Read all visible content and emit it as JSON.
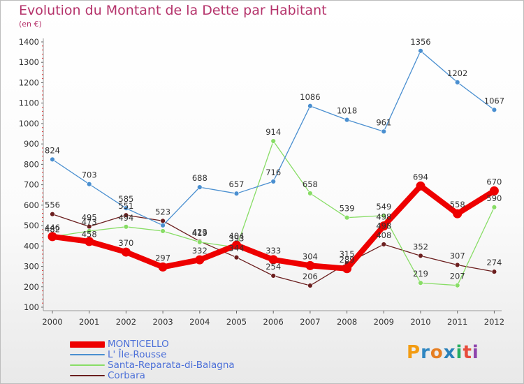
{
  "title": "Evolution du Montant de la Dette par Habitant",
  "subtitle": "(en €)",
  "logo": {
    "letters": [
      "P",
      "r",
      "o",
      "x",
      "i",
      "t",
      "i"
    ],
    "colors": [
      "#f39c12",
      "#2e86c1",
      "#e67e22",
      "#2980b9",
      "#27ae60",
      "#e74c3c",
      "#8e44ad"
    ]
  },
  "chart_data": {
    "type": "line",
    "title": "Evolution du Montant de la Dette par Habitant",
    "subtitle": "(en €)",
    "x": [
      "2000",
      "2001",
      "2002",
      "2003",
      "2004",
      "2005",
      "2006",
      "2007",
      "2008",
      "2009",
      "2010",
      "2011",
      "2012"
    ],
    "yticks": [
      100,
      200,
      300,
      400,
      500,
      600,
      700,
      800,
      900,
      1000,
      1100,
      1200,
      1300,
      1400
    ],
    "ylim": [
      100,
      1400
    ],
    "grid": false,
    "legend_position": "bottom-left",
    "series": [
      {
        "name": "MONTICELLO",
        "color": "#ee0000",
        "values": [
          446,
          422,
          370,
          297,
          332,
          404,
          333,
          304,
          289,
          498,
          694,
          558,
          670
        ],
        "labels": [
          "446",
          "",
          "370",
          "297",
          "332",
          "404",
          "333",
          "304",
          "289",
          "498",
          "694",
          "558",
          "670"
        ]
      },
      {
        "name": "L' Île-Rousse",
        "color": "#4a8fd0",
        "values": [
          824,
          703,
          585,
          501,
          688,
          657,
          716,
          1086,
          1018,
          961,
          1356,
          1202,
          1067
        ],
        "labels": [
          "824",
          "703",
          "585",
          "",
          "688",
          "657",
          "716",
          "1086",
          "1018",
          "961",
          "1356",
          "1202",
          "1067"
        ]
      },
      {
        "name": "Santa-Reparata-di-Balagna",
        "color": "#88dd66",
        "values": [
          446,
          473,
          494,
          473,
          419,
          393,
          914,
          658,
          539,
          549,
          219,
          207,
          590
        ],
        "labels": [
          "",
          "473",
          "494",
          "",
          "419",
          "393",
          "914",
          "658",
          "539",
          "549",
          "219",
          "207",
          "590"
        ]
      },
      {
        "name": "Corbara",
        "color": "#6b1e1e",
        "values": [
          556,
          495,
          551,
          523,
          423,
          344,
          254,
          206,
          315,
          408,
          352,
          307,
          274
        ],
        "labels": [
          "556",
          "495",
          "551",
          "523",
          "423",
          "344",
          "254",
          "206",
          "315",
          "408",
          "352",
          "307",
          "274"
        ]
      }
    ],
    "annotations": [
      "482",
      "458",
      "498"
    ]
  }
}
